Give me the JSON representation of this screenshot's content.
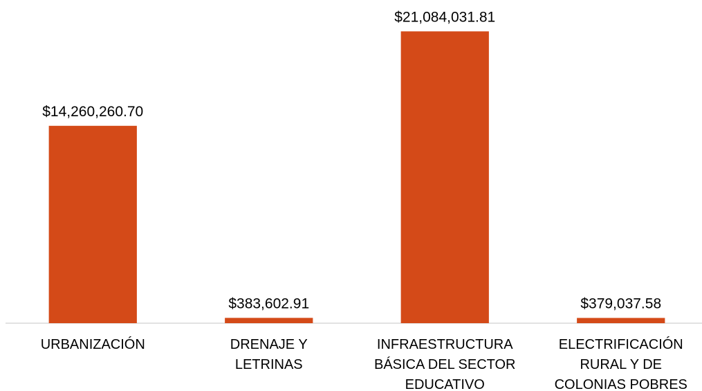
{
  "chart_data": {
    "type": "bar",
    "categories": [
      "URBANIZACIÓN",
      "DRENAJE Y\nLETRINAS",
      "INFRAESTRUCTURA\nBÁSICA DEL SECTOR\nEDUCATIVO",
      "ELECTRIFICACIÓN\nRURAL Y DE\nCOLONIAS POBRES"
    ],
    "values": [
      14260260.7,
      383602.91,
      21084031.81,
      379037.58
    ],
    "value_labels": [
      "$14,260,260.70",
      "$383,602.91",
      "$21,084,031.81",
      "$379,037.58"
    ],
    "color": "#d44a18",
    "ylim": [
      0,
      22000000
    ]
  }
}
